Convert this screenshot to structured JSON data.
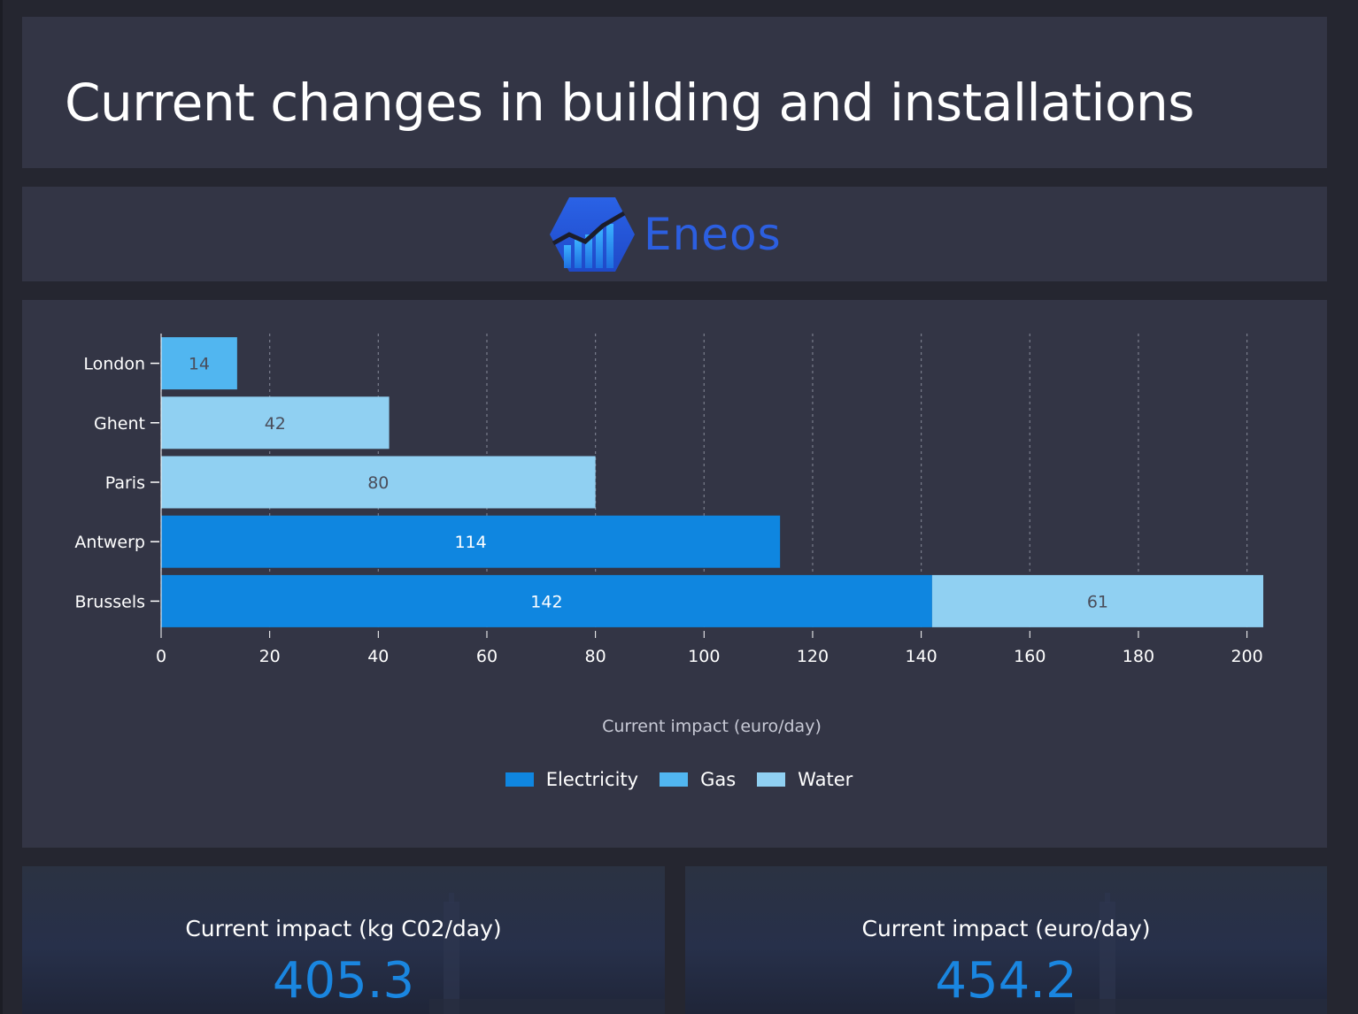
{
  "header": {
    "title": "Current changes in building and installations"
  },
  "logo": {
    "text": "Eneos",
    "color": "#2c5fe0"
  },
  "chart_data": {
    "type": "bar",
    "orientation": "horizontal",
    "stacked": true,
    "categories": [
      "London",
      "Ghent",
      "Paris",
      "Antwerp",
      "Brussels"
    ],
    "series": [
      {
        "name": "Electricity",
        "color": "#0f86e0",
        "values": [
          0,
          0,
          0,
          114,
          142
        ],
        "labels": [
          "",
          "",
          "",
          "114",
          "142"
        ]
      },
      {
        "name": "Gas",
        "color": "#51b6f0",
        "values": [
          14,
          0,
          0,
          0,
          0
        ],
        "labels": [
          "14",
          "",
          "",
          "",
          ""
        ]
      },
      {
        "name": "Water",
        "color": "#90d0f2",
        "values": [
          0,
          42,
          80,
          0,
          61
        ],
        "labels": [
          "",
          "42",
          "80",
          "",
          "61"
        ]
      }
    ],
    "xticks": [
      "0",
      "20",
      "40",
      "60",
      "80",
      "100",
      "120",
      "140",
      "160",
      "180",
      "200"
    ],
    "xlim": [
      0,
      203
    ],
    "xlabel": "Current impact (euro/day)",
    "grid": "vertical dotted",
    "legend_position": "bottom"
  },
  "stats": [
    {
      "label": "Current impact (kg C02/day)",
      "value": "405.3"
    },
    {
      "label": "Current impact (euro/day)",
      "value": "454.2"
    }
  ],
  "colors": {
    "panel": "#333545",
    "background": "#252630",
    "accent": "#1a86e0"
  }
}
